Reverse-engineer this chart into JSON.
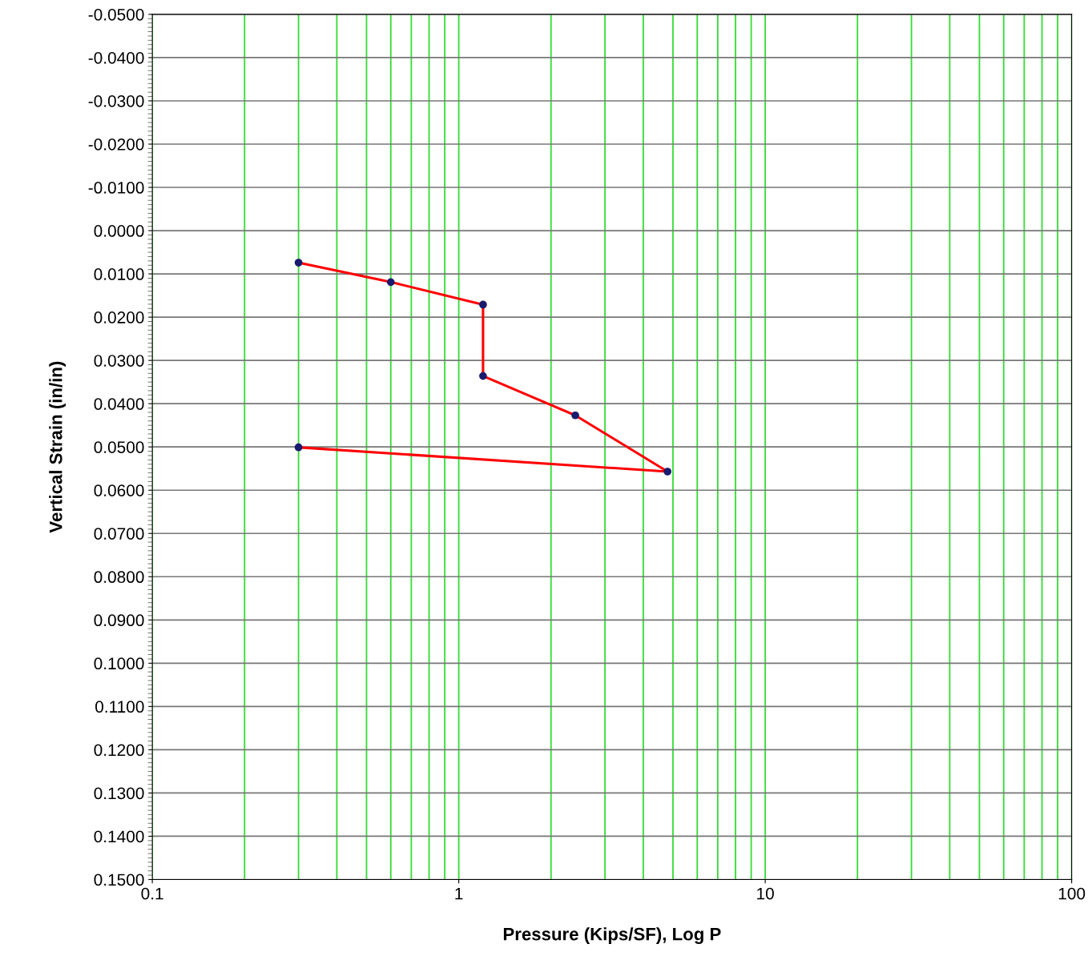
{
  "chart_data": {
    "type": "line",
    "xlabel": "Pressure (Kips/SF), Log P",
    "ylabel": "Vertical Strain (in/in)",
    "log": "x",
    "grid": true,
    "marker": "circle",
    "line_style": "solid",
    "x": [
      0.3,
      0.6,
      1.2,
      1.2,
      2.4,
      4.8,
      0.3
    ],
    "series": [
      {
        "color": "#ff0000",
        "values": [
          0.0074,
          0.0119,
          0.0171,
          0.0336,
          0.0427,
          0.0557,
          0.0501
        ]
      }
    ],
    "xlim": [
      0.1,
      100
    ],
    "xticks": [
      0.1,
      1,
      10,
      100
    ],
    "ylim": [
      0.15,
      -0.05
    ],
    "yticks": [
      {
        "value": -0.05,
        "label": "-0.0500"
      },
      {
        "value": -0.04,
        "label": "-0.0400"
      },
      {
        "value": -0.03,
        "label": "-0.0300"
      },
      {
        "value": -0.02,
        "label": "-0.0200"
      },
      {
        "value": -0.01,
        "label": "-0.0100"
      },
      {
        "value": 0.0,
        "label": "0.0000"
      },
      {
        "value": 0.01,
        "label": "0.0100"
      },
      {
        "value": 0.02,
        "label": "0.0200"
      },
      {
        "value": 0.03,
        "label": "0.0300"
      },
      {
        "value": 0.04,
        "label": "0.0400"
      },
      {
        "value": 0.05,
        "label": "0.0500"
      },
      {
        "value": 0.06,
        "label": "0.0600"
      },
      {
        "value": 0.07,
        "label": "0.0700"
      },
      {
        "value": 0.08,
        "label": "0.0800"
      },
      {
        "value": 0.09,
        "label": "0.0900"
      },
      {
        "value": 0.1,
        "label": "0.1000"
      },
      {
        "value": 0.11,
        "label": "0.1100"
      },
      {
        "value": 0.12,
        "label": "0.1200"
      },
      {
        "value": 0.13,
        "label": "0.1300"
      },
      {
        "value": 0.14,
        "label": "0.1400"
      },
      {
        "value": 0.15,
        "label": "0.1500"
      }
    ]
  }
}
